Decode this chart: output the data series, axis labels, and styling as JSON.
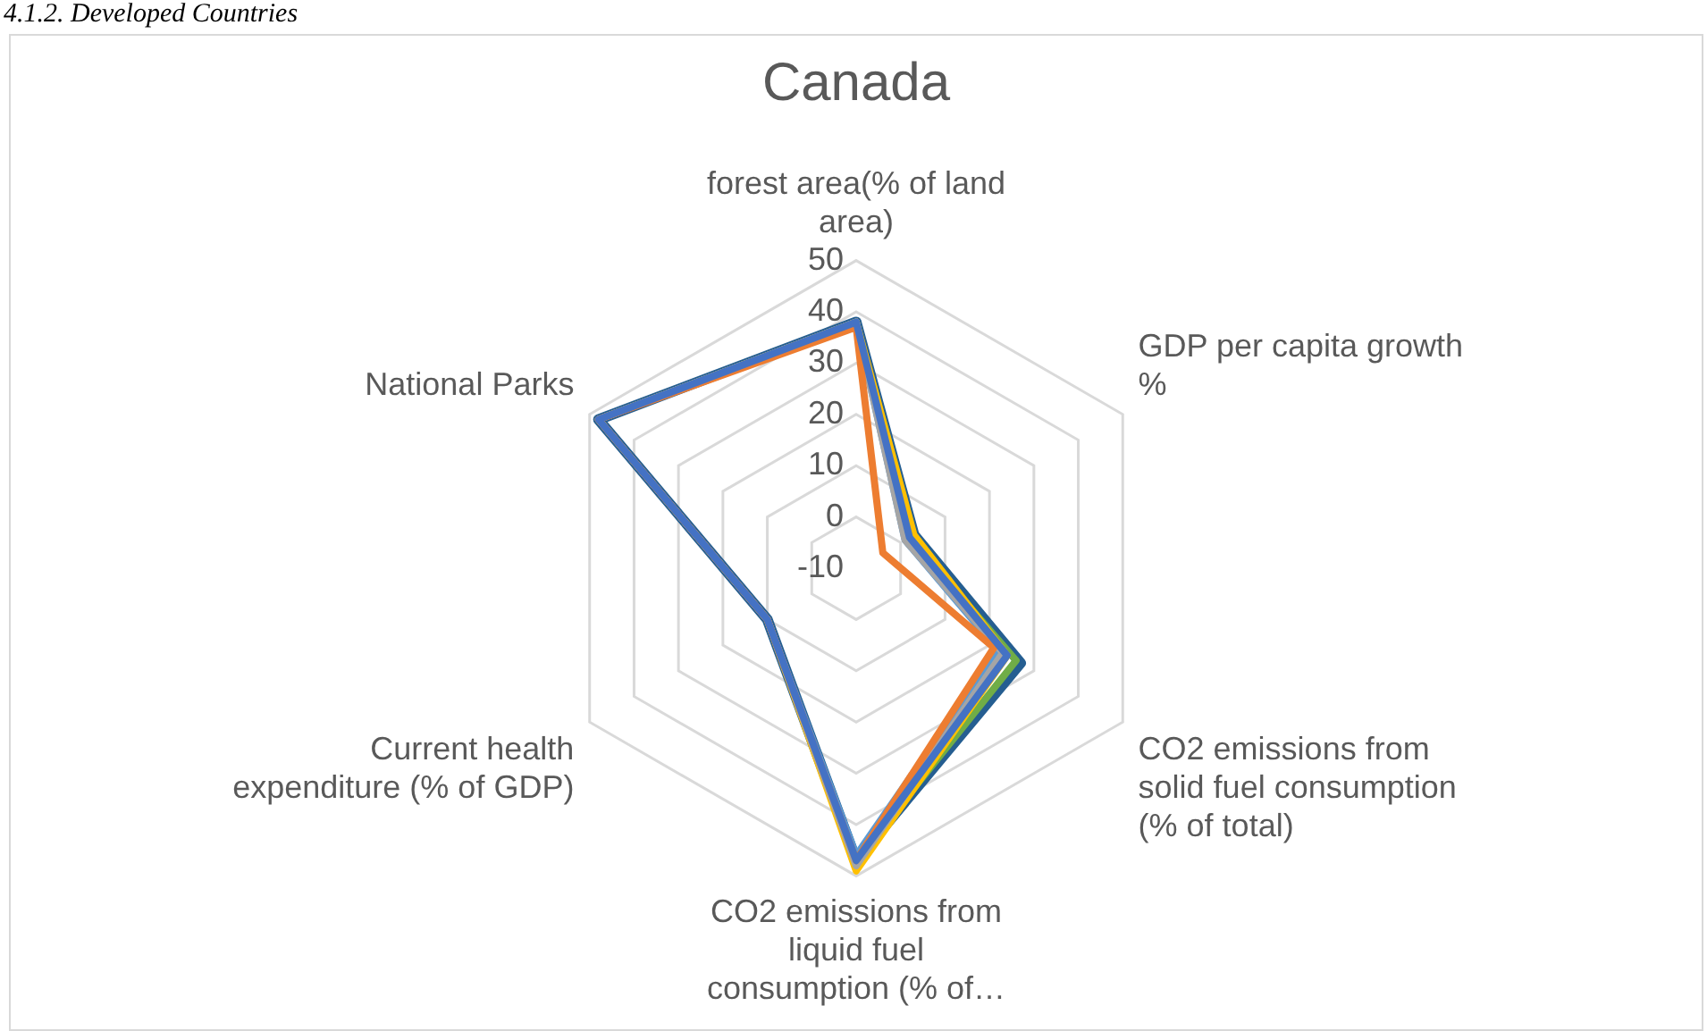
{
  "chart_data": {
    "type": "radar",
    "title": "Canada",
    "annotations": [
      "4.1.2. Developed Countries"
    ],
    "categories": [
      "forest area(% of land area)",
      "GDP per capita growth %",
      "CO2 emissions from solid fuel consumption (% of total)",
      "CO2 emissions from liquid fuel consumption (% of…",
      "Current health expenditure (% of GDP)",
      "National Parks"
    ],
    "series": [
      {
        "color": "#4472c4",
        "values": [
          38,
          2,
          24,
          47,
          10,
          48
        ]
      },
      {
        "color": "#ed7d31",
        "values": [
          37,
          -4,
          21,
          47,
          10,
          48
        ]
      },
      {
        "color": "#a5a5a5",
        "values": [
          38,
          1,
          23,
          48,
          10,
          48
        ]
      },
      {
        "color": "#ffc000",
        "values": [
          38,
          3,
          24,
          49,
          10,
          48
        ]
      },
      {
        "color": "#5b9bd5",
        "values": [
          38,
          1,
          22,
          46,
          10,
          48
        ]
      },
      {
        "color": "#70ad47",
        "values": [
          38,
          2,
          26,
          47,
          10,
          48
        ]
      },
      {
        "color": "#255e91",
        "values": [
          38,
          3,
          27,
          47,
          10,
          48
        ]
      }
    ],
    "ylim": [
      -10,
      50
    ],
    "yticks": [
      -10,
      0,
      10,
      20,
      30,
      40,
      50
    ],
    "grid": true,
    "marker": "none",
    "legend": false
  }
}
